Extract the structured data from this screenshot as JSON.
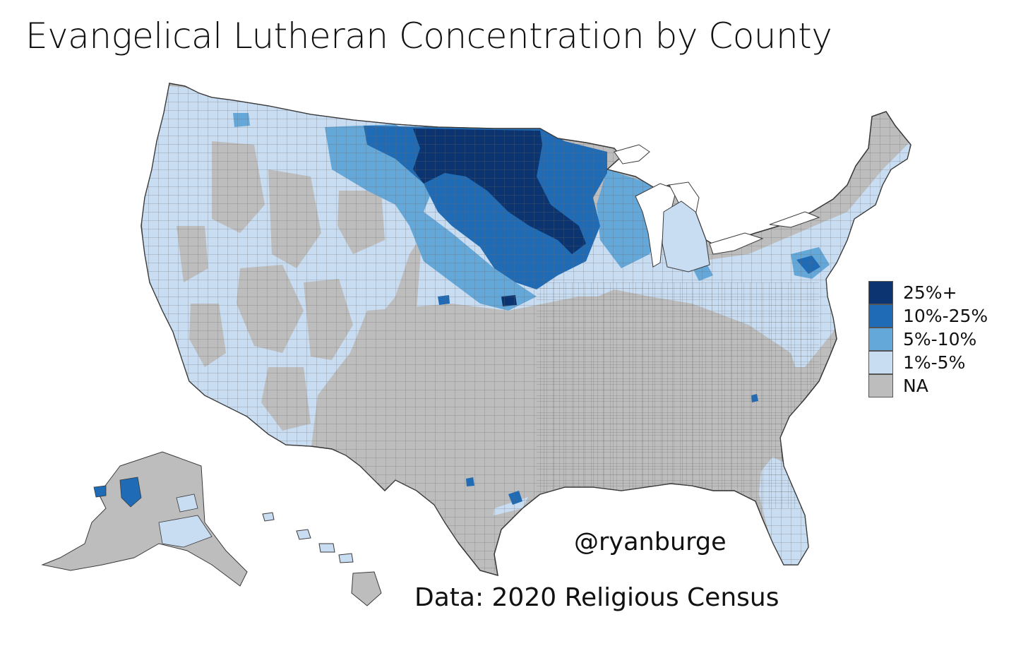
{
  "title": "Evangelical Lutheran Concentration by County",
  "legend": {
    "items": [
      {
        "label": "25%+",
        "color": "#0b3470"
      },
      {
        "label": "10%-25%",
        "color": "#1f6bb5"
      },
      {
        "label": "5%-10%",
        "color": "#64a7d9"
      },
      {
        "label": "1%-5%",
        "color": "#c8dcf2"
      },
      {
        "label": "NA",
        "color": "#bdbdbd"
      }
    ]
  },
  "credit": "@ryanburge",
  "source": "Data: 2020 Religious Census",
  "colors": {
    "border": "#4a4a4a",
    "background": "#ffffff"
  }
}
